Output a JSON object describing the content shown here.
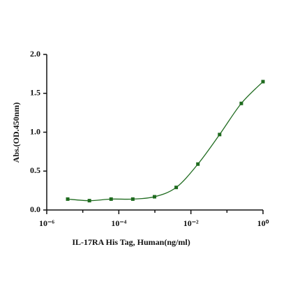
{
  "chart_data": {
    "type": "scatter",
    "xlabel": "IL-17RA His Tag, Human(ng/ml)",
    "ylabel": "Abs.(OD.450nm)",
    "x": [
      3.8147e-06,
      1.5259e-05,
      6.1035e-05,
      0.00024414,
      0.00097656,
      0.0039063,
      0.015625,
      0.0625,
      0.25,
      1
    ],
    "series": [
      {
        "color": "#1f6b1f",
        "values": [
          0.14,
          0.12,
          0.14,
          0.14,
          0.17,
          0.29,
          0.59,
          0.97,
          1.37,
          1.65
        ]
      }
    ],
    "xscale": "log",
    "xlim": [
      1e-06,
      1
    ],
    "xticks": [
      {
        "value": 1e-06,
        "label": "10⁻⁶"
      },
      {
        "value": 0.0001,
        "label": "10⁻⁴"
      },
      {
        "value": 0.01,
        "label": "10⁻²"
      },
      {
        "value": 1,
        "label": "10⁰"
      }
    ],
    "xminor_ticks": [
      1e-05,
      0.001,
      0.1
    ],
    "ylim": [
      0,
      2
    ],
    "yticks": [
      {
        "value": 0,
        "label": "0.0"
      },
      {
        "value": 0.5,
        "label": "0.5"
      },
      {
        "value": 1,
        "label": "1.0"
      },
      {
        "value": 1.5,
        "label": "1.5"
      },
      {
        "value": 2,
        "label": "2.0"
      }
    ]
  }
}
